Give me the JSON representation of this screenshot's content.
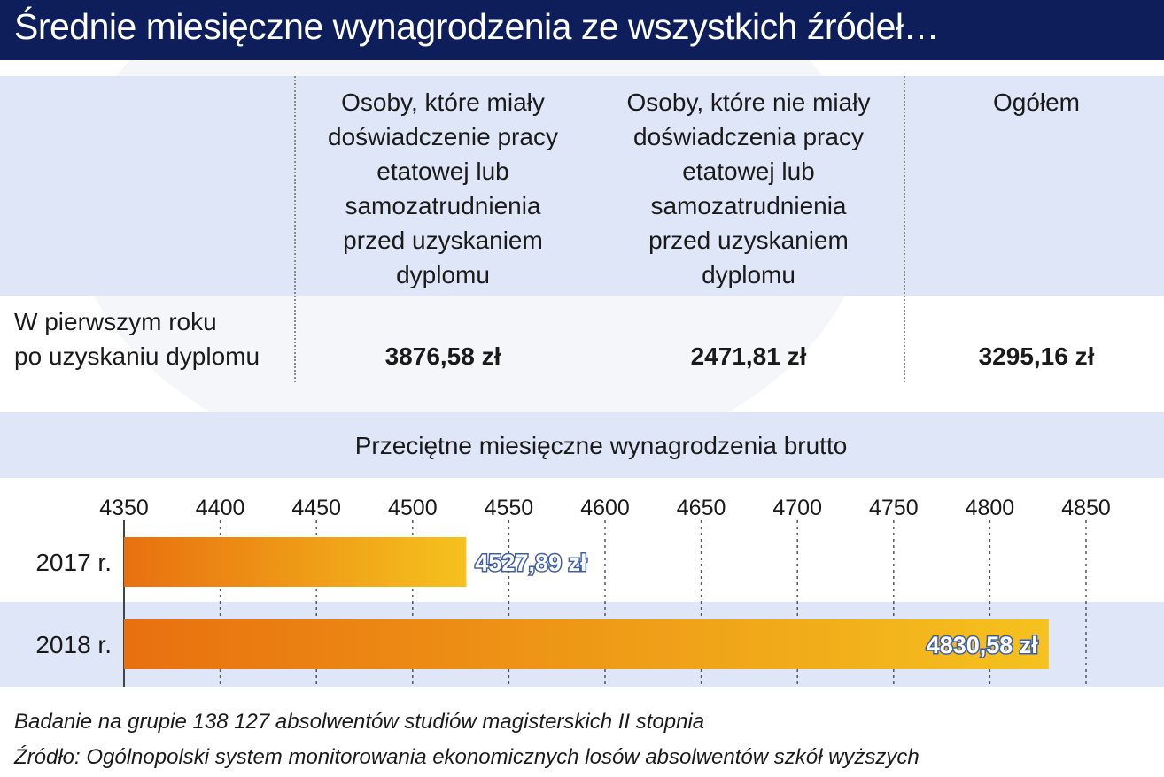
{
  "title": "Średnie miesięczne wynagrodzenia ze wszystkich źródeł…",
  "table": {
    "headers": [
      [
        "Osoby, które miały",
        "doświadczenie pracy",
        "etatowej lub",
        "samozatrudnienia",
        "przed uzyskaniem",
        "dyplomu"
      ],
      [
        "Osoby, które nie miały",
        "doświadczenia pracy",
        "etatowej lub",
        "samozatrudnienia",
        "przed uzyskaniem",
        "dyplomu"
      ],
      [
        "Ogółem"
      ]
    ],
    "row_label": [
      "W pierwszym roku",
      "po uzyskaniu dyplomu"
    ],
    "values": [
      "3876,58 zł",
      "2471,81 zł",
      "3295,16 zł"
    ]
  },
  "chart_data": {
    "type": "bar",
    "orientation": "horizontal",
    "title": "Przeciętne miesięczne wynagrodzenia brutto",
    "categories": [
      "2017 r.",
      "2018 r."
    ],
    "values": [
      4527.89,
      4830.58
    ],
    "value_labels": [
      "4527,89 zł",
      "4830,58 zł"
    ],
    "xlim": [
      4350,
      4850
    ],
    "ticks": [
      "4350",
      "4400",
      "4450",
      "4500",
      "4550",
      "4600",
      "4650",
      "4700",
      "4750",
      "4800",
      "4850"
    ],
    "grid": true,
    "colors": {
      "bar_start": "#e8700f",
      "bar_end": "#f5c21e",
      "label_fill": "#ffffff",
      "label_stroke": "#3e5fa8",
      "band": "#dfe6f7"
    }
  },
  "footnotes": [
    "Badanie na grupie 138 127 absolwentów studiów magisterskich II stopnia",
    "Źródło: Ogólnopolski system monitorowania ekonomicznych losów absolwentów szkół wyższych"
  ]
}
